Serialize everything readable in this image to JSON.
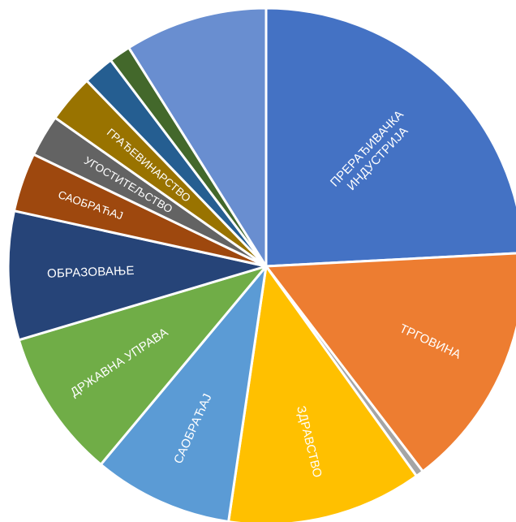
{
  "chart_data": {
    "type": "pie",
    "title": "",
    "legend": "none",
    "slices": [
      {
        "label": [
          "ПРЕРАЂИВАЧКА",
          "ИНДУСТРИЈА"
        ],
        "value": 24.9,
        "color": "#4472C4"
      },
      {
        "label": [
          "ТРГОВИНА"
        ],
        "value": 15.9,
        "color": "#ED7D31"
      },
      {
        "label": [],
        "value": 0.5,
        "color": "#A5A5A5"
      },
      {
        "label": [
          "ЗДРАВСТВО"
        ],
        "value": 12.6,
        "color": "#FFC000"
      },
      {
        "label": [
          "САОБРАЋАЈ"
        ],
        "value": 9.0,
        "color": "#5B9BD5"
      },
      {
        "label": [
          "ДРЖАВНА УПРАВА"
        ],
        "value": 9.6,
        "color": "#70AD47"
      },
      {
        "label": [
          "ОБРАЗОВАЊЕ"
        ],
        "value": 8.3,
        "color": "#264478"
      },
      {
        "label": [
          "САОБРАЋАЈ"
        ],
        "value": 3.8,
        "color": "#9E480E"
      },
      {
        "label": [
          "УГОСТИТЕЉСТВО"
        ],
        "value": 2.7,
        "color": "#636363"
      },
      {
        "label": [
          "ГРАЂЕВИНАРСТВО"
        ],
        "value": 3.1,
        "color": "#997300"
      },
      {
        "label": [],
        "value": 2.0,
        "color": "#255E91"
      },
      {
        "label": [],
        "value": 1.4,
        "color": "#43682B"
      },
      {
        "label": [],
        "value": 9.2,
        "color": "#698ED0"
      }
    ]
  }
}
